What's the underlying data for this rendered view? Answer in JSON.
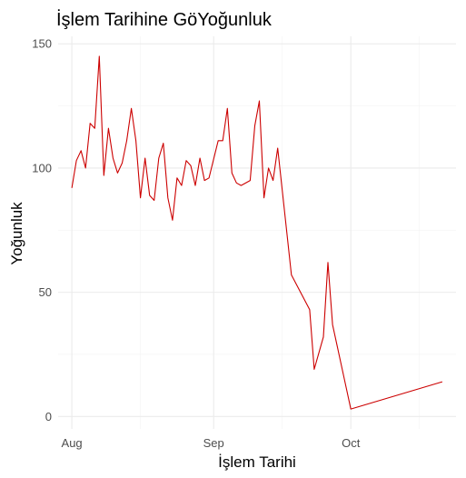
{
  "chart_data": {
    "type": "line",
    "title": "İşlem Tarihine GöYoğunluk",
    "xlabel": "İşlem Tarihi",
    "ylabel": "Yoğunluk",
    "x_ticks": [
      {
        "label": "Aug",
        "date": "2023-08-01"
      },
      {
        "label": "Sep",
        "date": "2023-09-01"
      },
      {
        "label": "Oct",
        "date": "2023-10-01"
      }
    ],
    "x_minor_ticks": [
      "2023-08-16",
      "2023-09-16",
      "2023-10-16"
    ],
    "xlim": [
      "2023-07-29",
      "2023-10-24"
    ],
    "y_ticks": [
      0,
      50,
      100,
      150
    ],
    "ylim": [
      -5,
      153
    ],
    "grid": true,
    "line_color": "#cc0000",
    "series": [
      {
        "points": [
          [
            "2023-08-01",
            92
          ],
          [
            "2023-08-02",
            103
          ],
          [
            "2023-08-03",
            107
          ],
          [
            "2023-08-04",
            100
          ],
          [
            "2023-08-05",
            118
          ],
          [
            "2023-08-06",
            116
          ],
          [
            "2023-08-07",
            145
          ],
          [
            "2023-08-08",
            97
          ],
          [
            "2023-08-09",
            116
          ],
          [
            "2023-08-10",
            104
          ],
          [
            "2023-08-11",
            98
          ],
          [
            "2023-08-12",
            102
          ],
          [
            "2023-08-13",
            111
          ],
          [
            "2023-08-14",
            124
          ],
          [
            "2023-08-15",
            111
          ],
          [
            "2023-08-16",
            88
          ],
          [
            "2023-08-17",
            104
          ],
          [
            "2023-08-18",
            89
          ],
          [
            "2023-08-19",
            87
          ],
          [
            "2023-08-20",
            104
          ],
          [
            "2023-08-21",
            110
          ],
          [
            "2023-08-22",
            88
          ],
          [
            "2023-08-23",
            79
          ],
          [
            "2023-08-24",
            96
          ],
          [
            "2023-08-25",
            93
          ],
          [
            "2023-08-26",
            103
          ],
          [
            "2023-08-27",
            101
          ],
          [
            "2023-08-28",
            93
          ],
          [
            "2023-08-29",
            104
          ],
          [
            "2023-08-30",
            95
          ],
          [
            "2023-08-31",
            96
          ],
          [
            "2023-09-02",
            111
          ],
          [
            "2023-09-03",
            111
          ],
          [
            "2023-09-04",
            124
          ],
          [
            "2023-09-05",
            98
          ],
          [
            "2023-09-06",
            94
          ],
          [
            "2023-09-07",
            93
          ],
          [
            "2023-09-09",
            95
          ],
          [
            "2023-09-10",
            117
          ],
          [
            "2023-09-11",
            127
          ],
          [
            "2023-09-12",
            88
          ],
          [
            "2023-09-13",
            100
          ],
          [
            "2023-09-14",
            95
          ],
          [
            "2023-09-15",
            108
          ],
          [
            "2023-09-18",
            57
          ],
          [
            "2023-09-22",
            43
          ],
          [
            "2023-09-23",
            19
          ],
          [
            "2023-09-25",
            32
          ],
          [
            "2023-09-26",
            62
          ],
          [
            "2023-09-27",
            37
          ],
          [
            "2023-10-01",
            3
          ],
          [
            "2023-10-21",
            14
          ]
        ]
      }
    ]
  }
}
